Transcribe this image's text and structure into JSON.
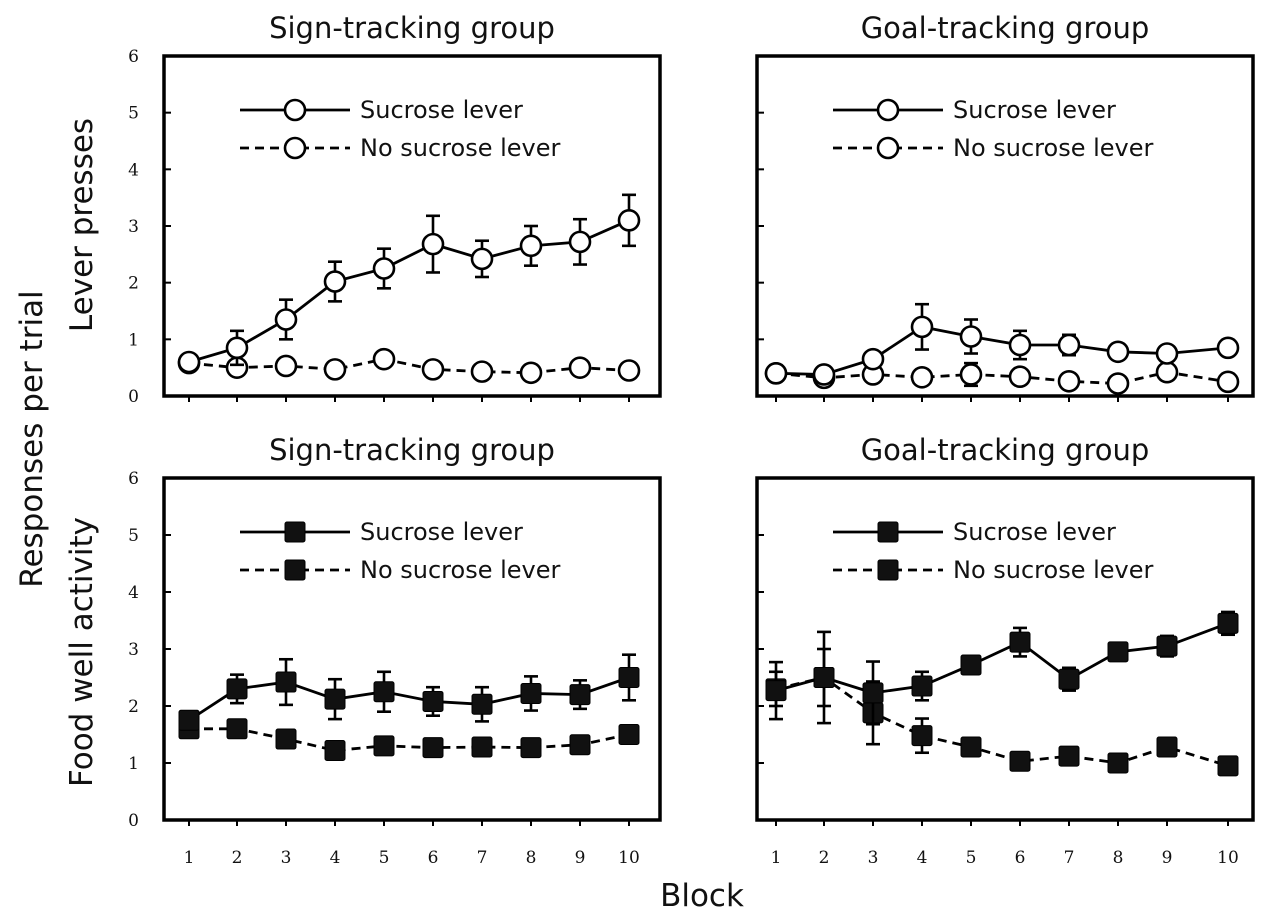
{
  "figure": {
    "y_label": "Responses per trial",
    "x_label": "Block",
    "row_labels": [
      "Lever presses",
      "Food well activity"
    ]
  },
  "chart_data": [
    {
      "type": "line",
      "title": "Sign-tracking group",
      "row": 0,
      "col": 0,
      "marker": "circle-open",
      "categories": [
        "1",
        "2",
        "3",
        "4",
        "5",
        "6",
        "7",
        "8",
        "9",
        "10"
      ],
      "ylim": [
        0,
        6
      ],
      "yticks": [
        "0",
        "1",
        "2",
        "3",
        "4",
        "5",
        "6"
      ],
      "legend": "top-left",
      "series": [
        {
          "name": "Sucrose lever",
          "style": "solid",
          "values": [
            0.6,
            0.85,
            1.35,
            2.02,
            2.25,
            2.68,
            2.42,
            2.65,
            2.72,
            3.1
          ],
          "errors": [
            0.05,
            0.3,
            0.35,
            0.35,
            0.35,
            0.5,
            0.32,
            0.35,
            0.4,
            0.45
          ]
        },
        {
          "name": "No sucrose lever",
          "style": "dashed",
          "values": [
            0.58,
            0.5,
            0.53,
            0.47,
            0.65,
            0.47,
            0.43,
            0.41,
            0.5,
            0.45
          ],
          "errors": [
            0.05,
            0.05,
            0.05,
            0.05,
            0.05,
            0.05,
            0.05,
            0.05,
            0.05,
            0.05
          ]
        }
      ]
    },
    {
      "type": "line",
      "title": "Goal-tracking group",
      "row": 0,
      "col": 1,
      "marker": "circle-open",
      "categories": [
        "1",
        "2",
        "3",
        "4",
        "5",
        "6",
        "7",
        "8",
        "9",
        "10"
      ],
      "ylim": [
        0,
        6
      ],
      "legend": "top-left",
      "series": [
        {
          "name": "Sucrose lever",
          "style": "solid",
          "values": [
            0.4,
            0.38,
            0.65,
            1.22,
            1.05,
            0.9,
            0.9,
            0.78,
            0.75,
            0.85
          ],
          "errors": [
            0.05,
            0.1,
            0.12,
            0.4,
            0.3,
            0.25,
            0.18,
            0.12,
            0.12,
            0.1
          ]
        },
        {
          "name": "No sucrose lever",
          "style": "dashed",
          "values": [
            0.4,
            0.32,
            0.38,
            0.33,
            0.38,
            0.34,
            0.26,
            0.22,
            0.42,
            0.25
          ],
          "errors": [
            0.05,
            0.05,
            0.05,
            0.05,
            0.2,
            0.05,
            0.05,
            0.05,
            0.1,
            0.05
          ]
        }
      ]
    },
    {
      "type": "line",
      "title": "Sign-tracking group",
      "row": 1,
      "col": 0,
      "marker": "square-filled",
      "categories": [
        "1",
        "2",
        "3",
        "4",
        "5",
        "6",
        "7",
        "8",
        "9",
        "10"
      ],
      "ylim": [
        0,
        6
      ],
      "yticks": [
        "0",
        "1",
        "2",
        "3",
        "4",
        "5",
        "6"
      ],
      "legend": "top-left",
      "series": [
        {
          "name": "Sucrose lever",
          "style": "solid",
          "values": [
            1.75,
            2.3,
            2.42,
            2.12,
            2.25,
            2.08,
            2.03,
            2.22,
            2.2,
            2.5
          ],
          "errors": [
            0.1,
            0.25,
            0.4,
            0.35,
            0.35,
            0.25,
            0.3,
            0.3,
            0.25,
            0.4
          ]
        },
        {
          "name": "No sucrose lever",
          "style": "dashed",
          "values": [
            1.6,
            1.6,
            1.42,
            1.22,
            1.3,
            1.27,
            1.28,
            1.27,
            1.32,
            1.5
          ],
          "errors": [
            0.05,
            0.05,
            0.05,
            0.05,
            0.05,
            0.05,
            0.05,
            0.05,
            0.05,
            0.05
          ]
        }
      ]
    },
    {
      "type": "line",
      "title": "Goal-tracking group",
      "row": 1,
      "col": 1,
      "marker": "square-filled",
      "categories": [
        "1",
        "2",
        "3",
        "4",
        "5",
        "6",
        "7",
        "8",
        "9",
        "10"
      ],
      "ylim": [
        0,
        6
      ],
      "legend": "top-left",
      "series": [
        {
          "name": "Sucrose lever",
          "style": "solid",
          "values": [
            2.27,
            2.5,
            2.23,
            2.35,
            2.72,
            3.12,
            2.47,
            2.95,
            3.05,
            3.45
          ],
          "errors": [
            0.5,
            0.8,
            0.55,
            0.25,
            0.12,
            0.25,
            0.2,
            0.15,
            0.18,
            0.2
          ]
        },
        {
          "name": "No sucrose lever",
          "style": "dashed",
          "values": [
            2.3,
            2.5,
            1.88,
            1.48,
            1.28,
            1.03,
            1.12,
            1.0,
            1.28,
            0.95
          ],
          "errors": [
            0.3,
            0.5,
            0.55,
            0.3,
            0.05,
            0.05,
            0.1,
            0.05,
            0.05,
            0.05
          ]
        }
      ]
    }
  ]
}
